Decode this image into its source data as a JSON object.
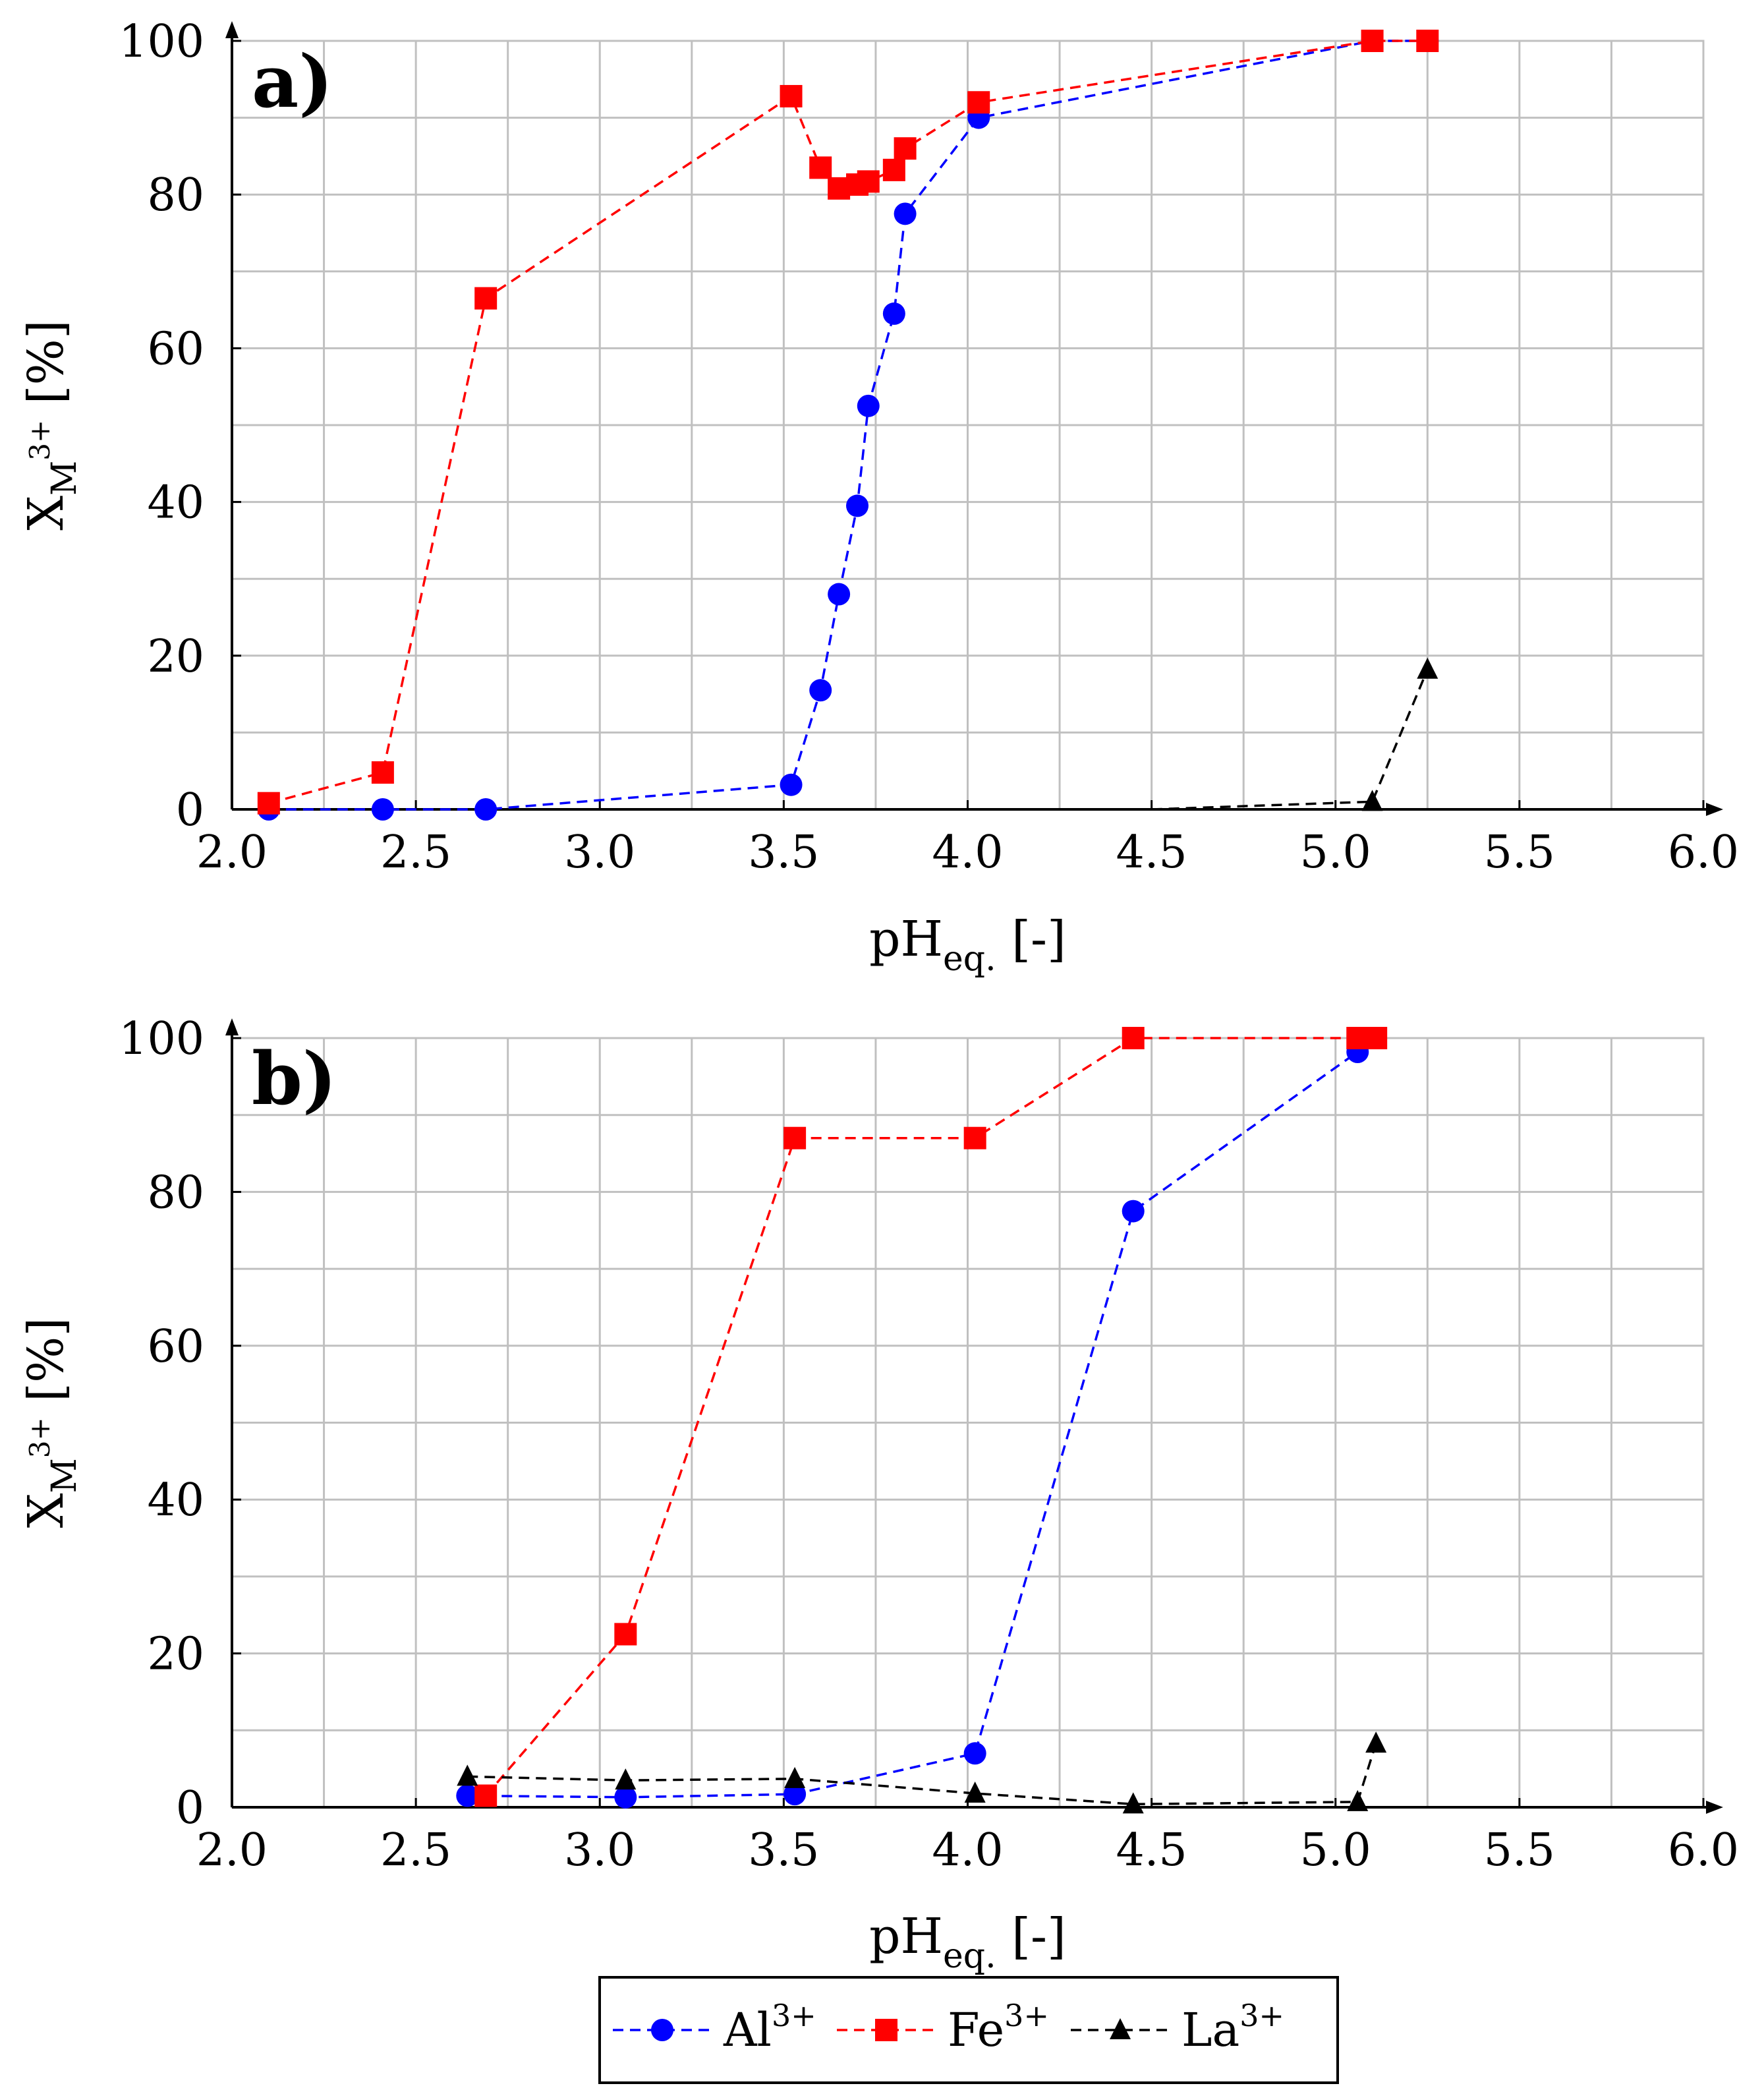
{
  "legend": [
    {
      "label": "Al",
      "sup": "3+"
    },
    {
      "label": "Fe",
      "sup": "3+"
    },
    {
      "label": "La",
      "sup": "3+"
    }
  ],
  "chart_data": [
    {
      "type": "line",
      "panel_label": "a)",
      "xlabel": "pH",
      "xlabel_sub": "eq.",
      "xlabel_suffix": " [-]",
      "ylabel": "X",
      "ylabel_sub": "M",
      "ylabel_sup": "3+",
      "ylabel_suffix": " [%]",
      "xlim": [
        2.0,
        6.0
      ],
      "ylim": [
        0,
        100
      ],
      "xticks": [
        "2.0",
        "2.5",
        "3.0",
        "3.5",
        "4.0",
        "4.5",
        "5.0",
        "5.5",
        "6.0"
      ],
      "yticks": [
        "0",
        "20",
        "40",
        "60",
        "80",
        "100"
      ],
      "grid": true,
      "series": [
        {
          "name": "Al3+",
          "color": "#0000ff",
          "marker": "circle",
          "x": [
            2.1,
            2.41,
            2.69,
            3.52,
            3.6,
            3.65,
            3.7,
            3.73,
            3.8,
            3.83,
            4.03,
            5.1,
            5.25
          ],
          "y": [
            0,
            0,
            0,
            3.2,
            15.5,
            28,
            39.5,
            52.5,
            64.5,
            77.5,
            90,
            100,
            100
          ]
        },
        {
          "name": "Fe3+",
          "color": "#ff0000",
          "marker": "square",
          "x": [
            2.1,
            2.41,
            2.69,
            3.52,
            3.6,
            3.65,
            3.7,
            3.73,
            3.8,
            3.83,
            4.03,
            5.1,
            5.25
          ],
          "y": [
            0.8,
            4.8,
            66.5,
            92.8,
            83.5,
            80.8,
            81.3,
            81.7,
            83.2,
            86,
            92,
            100,
            100
          ]
        },
        {
          "name": "La3+",
          "color": "#000000",
          "marker": "triangle",
          "x": [
            4.5,
            5.1,
            5.25
          ],
          "y": [
            0,
            1,
            18.2
          ],
          "marker_mask": [
            false,
            true,
            true
          ]
        }
      ]
    },
    {
      "type": "line",
      "panel_label": "b)",
      "xlabel": "pH",
      "xlabel_sub": "eq.",
      "xlabel_suffix": " [-]",
      "ylabel": "X",
      "ylabel_sub": "M",
      "ylabel_sup": "3+",
      "ylabel_suffix": " [%]",
      "xlim": [
        2.0,
        6.0
      ],
      "ylim": [
        0,
        100
      ],
      "xticks": [
        "2.0",
        "2.5",
        "3.0",
        "3.5",
        "4.0",
        "4.5",
        "5.0",
        "5.5",
        "6.0"
      ],
      "yticks": [
        "0",
        "20",
        "40",
        "60",
        "80",
        "100"
      ],
      "grid": true,
      "series": [
        {
          "name": "Al3+",
          "color": "#0000ff",
          "marker": "circle",
          "x": [
            2.64,
            3.07,
            3.53,
            4.02,
            4.45,
            5.06
          ],
          "y": [
            1.5,
            1.3,
            1.7,
            7,
            77.5,
            98.2
          ]
        },
        {
          "name": "Fe3+",
          "color": "#ff0000",
          "marker": "square",
          "x": [
            2.69,
            3.07,
            3.53,
            4.02,
            4.45,
            5.06,
            5.11
          ],
          "y": [
            1.5,
            22.5,
            87,
            87,
            100,
            100,
            100
          ]
        },
        {
          "name": "La3+",
          "color": "#000000",
          "marker": "triangle",
          "x": [
            2.64,
            3.07,
            3.53,
            4.02,
            4.45,
            5.06,
            5.11
          ],
          "y": [
            4,
            3.5,
            3.7,
            1.8,
            0.4,
            0.7,
            8.3
          ]
        }
      ]
    }
  ]
}
